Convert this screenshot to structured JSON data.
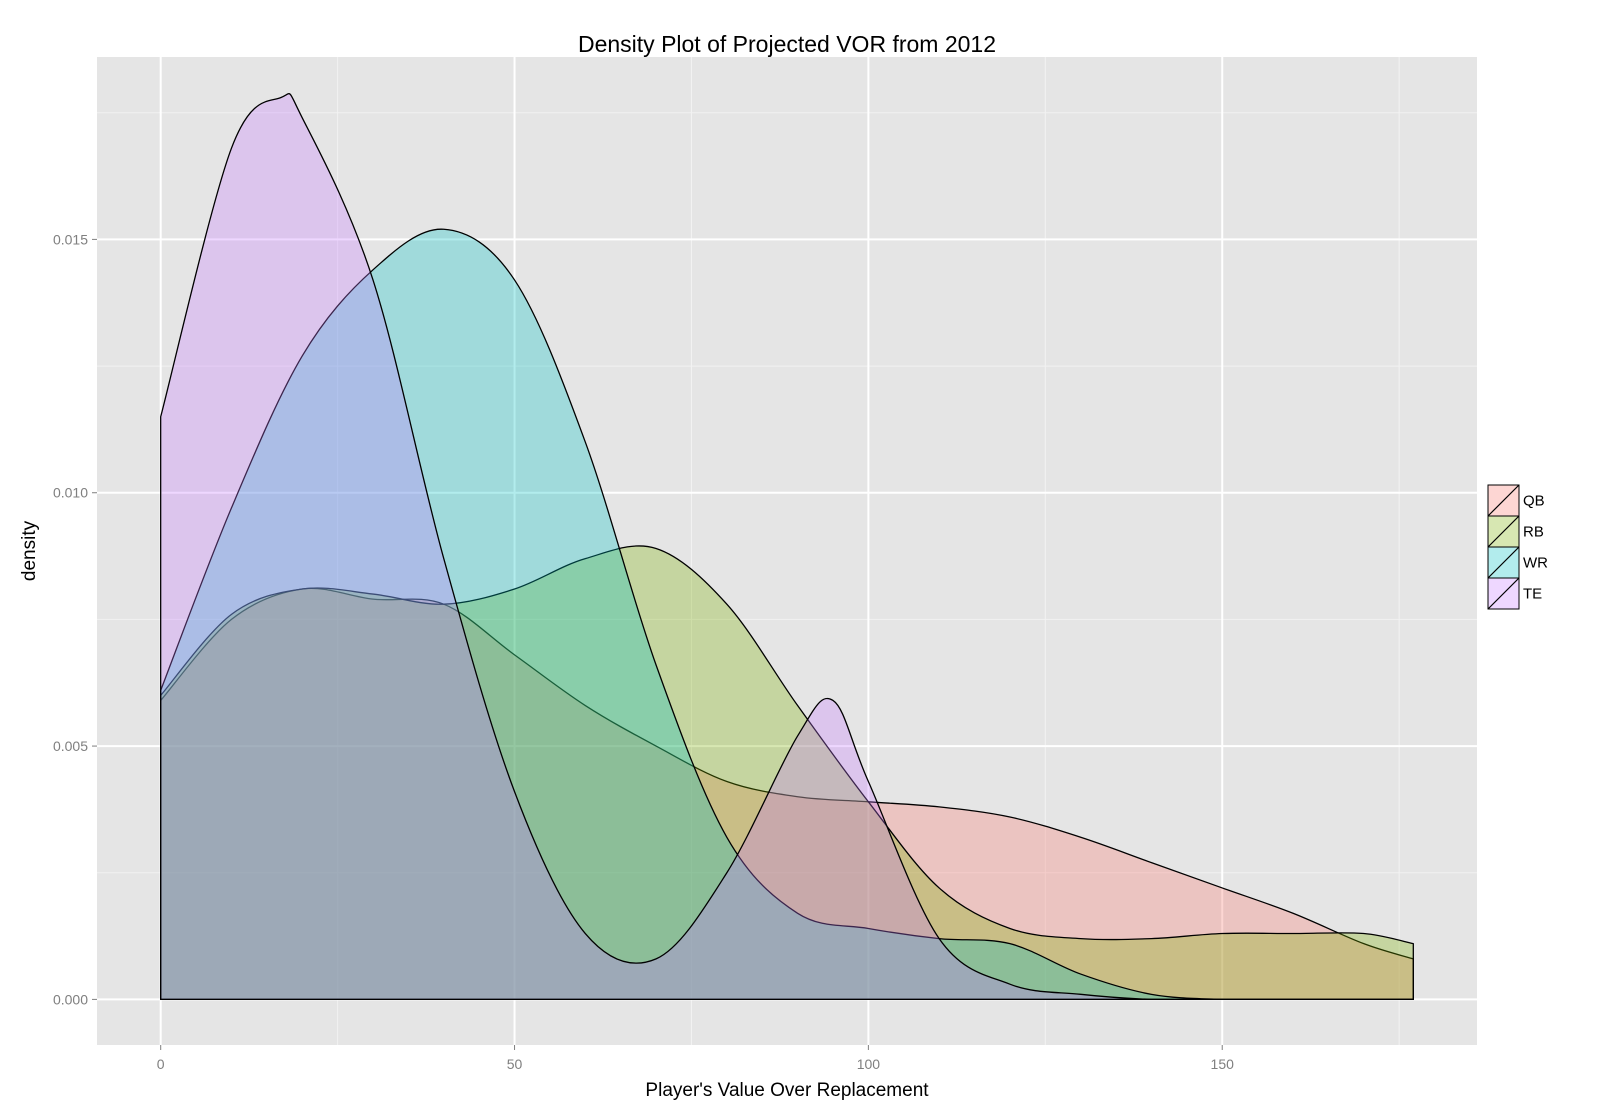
{
  "chart_data": {
    "type": "area",
    "title": "Density Plot of Projected VOR from 2012",
    "xlabel": "Player's Value Over Replacement",
    "ylabel": "density",
    "xlim": [
      -9,
      186
    ],
    "ylim": [
      -0.0009,
      0.0186
    ],
    "x_ticks": [
      0,
      50,
      100,
      150
    ],
    "x_tick_labels": [
      "0",
      "50",
      "100",
      "150"
    ],
    "y_ticks": [
      0,
      0.005,
      0.01,
      0.015
    ],
    "y_tick_labels": [
      "0.000",
      "0.005",
      "0.010",
      "0.015"
    ],
    "grid": true,
    "legend_position": "right",
    "series": [
      {
        "name": "QB",
        "color": "#F8766D",
        "x": [
          0,
          10,
          20,
          30,
          40,
          50,
          60,
          70,
          80,
          90,
          100,
          110,
          120,
          130,
          140,
          150,
          160,
          170,
          177
        ],
        "y": [
          0.0059,
          0.0075,
          0.0081,
          0.0079,
          0.0078,
          0.0068,
          0.0058,
          0.005,
          0.0043,
          0.004,
          0.0039,
          0.0038,
          0.0036,
          0.0032,
          0.0027,
          0.0022,
          0.0017,
          0.0011,
          0.0008
        ]
      },
      {
        "name": "RB",
        "color": "#7CAE00",
        "x": [
          0,
          10,
          20,
          30,
          40,
          50,
          60,
          70,
          80,
          90,
          100,
          110,
          120,
          130,
          140,
          150,
          160,
          170,
          177
        ],
        "y": [
          0.006,
          0.0076,
          0.0081,
          0.008,
          0.0078,
          0.0081,
          0.0087,
          0.0089,
          0.0078,
          0.0058,
          0.0039,
          0.0022,
          0.0014,
          0.0012,
          0.0012,
          0.0013,
          0.0013,
          0.0013,
          0.0011
        ]
      },
      {
        "name": "WR",
        "color": "#00BFC4",
        "x": [
          0,
          10,
          20,
          30,
          40,
          50,
          60,
          70,
          80,
          90,
          100,
          110,
          120,
          130,
          140,
          150,
          160,
          170,
          177
        ],
        "y": [
          0.0061,
          0.0097,
          0.0127,
          0.0144,
          0.0152,
          0.0142,
          0.011,
          0.0066,
          0.0032,
          0.0017,
          0.0014,
          0.0012,
          0.0011,
          0.0005,
          0.0001,
          0.0,
          0.0,
          0.0,
          0.0
        ]
      },
      {
        "name": "TE",
        "color": "#C77CFF",
        "x": [
          0,
          10,
          17,
          20,
          30,
          40,
          50,
          60,
          70,
          80,
          90,
          95,
          100,
          110,
          120,
          130,
          140,
          150,
          160,
          170,
          177
        ],
        "y": [
          0.0115,
          0.0168,
          0.0178,
          0.0174,
          0.0142,
          0.0087,
          0.0041,
          0.0013,
          0.0008,
          0.0025,
          0.0052,
          0.0059,
          0.0043,
          0.0012,
          0.0003,
          0.0001,
          0.0,
          0.0,
          0.0,
          0.0,
          0.0
        ]
      }
    ]
  }
}
